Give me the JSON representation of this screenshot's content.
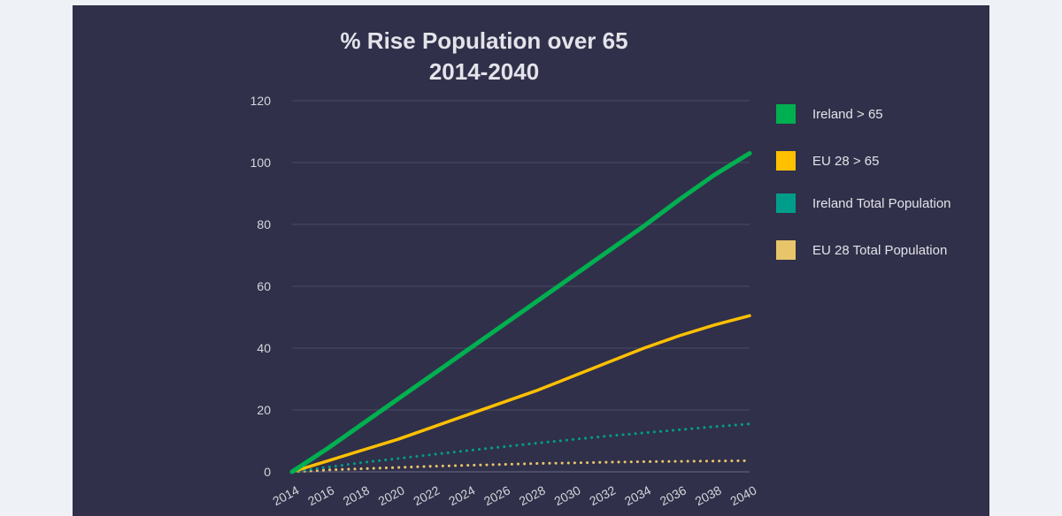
{
  "colors": {
    "panel_background": "#30304a",
    "page_background": "#eef2f6",
    "gridline": "#4a4a66",
    "text": "#e3e3ea"
  },
  "chart_data": {
    "type": "line",
    "title": "% Rise Population over 65",
    "subtitle": "2014-2040",
    "xlabel": "",
    "ylabel": "",
    "x": [
      2014,
      2016,
      2018,
      2020,
      2022,
      2024,
      2026,
      2028,
      2030,
      2032,
      2034,
      2036,
      2038,
      2040
    ],
    "ylim": [
      0,
      120
    ],
    "yticks": [
      0,
      20,
      40,
      60,
      80,
      100,
      120
    ],
    "grid": true,
    "legend_position": "right",
    "series": [
      {
        "name": "Ireland > 65",
        "color": "#00b050",
        "style": "solid",
        "values": [
          0,
          7.5,
          15.5,
          23.5,
          31.5,
          39.5,
          47.5,
          55.5,
          63.5,
          71.5,
          79.5,
          88.0,
          96.0,
          103.0
        ]
      },
      {
        "name": "EU 28 > 65",
        "color": "#ffc000",
        "style": "solid",
        "values": [
          0,
          3.5,
          7.0,
          10.5,
          14.5,
          18.5,
          22.5,
          26.5,
          31.0,
          35.5,
          40.0,
          44.0,
          47.5,
          50.5
        ]
      },
      {
        "name": "Ireland Total Population",
        "color": "#009e8a",
        "style": "dotted",
        "values": [
          0,
          1.5,
          3.0,
          4.3,
          5.6,
          6.9,
          8.1,
          9.3,
          10.5,
          11.6,
          12.6,
          13.6,
          14.6,
          15.5
        ]
      },
      {
        "name": "EU 28 Total Population",
        "color": "#e8c46a",
        "style": "dotted",
        "values": [
          0,
          0.6,
          1.0,
          1.4,
          1.8,
          2.1,
          2.4,
          2.7,
          2.9,
          3.1,
          3.3,
          3.4,
          3.5,
          3.6
        ]
      }
    ]
  }
}
